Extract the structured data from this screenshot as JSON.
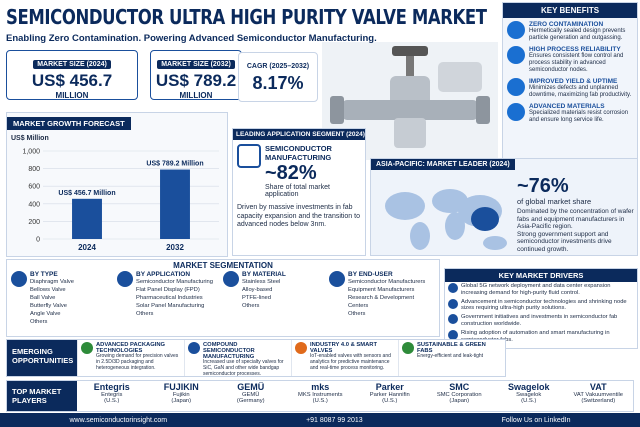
{
  "header": {
    "title": "SEMICONDUCTOR ULTRA HIGH PURITY VALVE MARKET",
    "subtitle": "Enabling Zero Contamination. Powering Advanced Semiconductor Manufacturing."
  },
  "stats": [
    {
      "label": "MARKET SIZE (2024)",
      "value": "US$ 456.7",
      "unit": "MILLION"
    },
    {
      "label": "MARKET SIZE (2032)",
      "value": "US$ 789.2",
      "unit": "MILLION"
    },
    {
      "label": "CAGR (2025–2032)",
      "value": "8.17%"
    }
  ],
  "forecast": {
    "type": "bar",
    "title": "MARKET GROWTH FORECAST",
    "y_label": "US$ Million",
    "categories": [
      "2024",
      "2032"
    ],
    "values": [
      456.7,
      789.2
    ],
    "value_labels": [
      "US$ 456.7 Million",
      "US$ 789.2 Million"
    ],
    "ylim": [
      0,
      1000
    ],
    "yticks": [
      0,
      200,
      400,
      600,
      800,
      {
        "value": 1000,
        "label": "1,000"
      }
    ],
    "color": "#1a4f9c",
    "grid": true
  },
  "key_benefits": {
    "title": "KEY BENEFITS",
    "items": [
      {
        "title": "ZERO CONTAMINATION",
        "text": "Hermetically sealed design prevents particle generation and outgassing."
      },
      {
        "title": "HIGH PROCESS RELIABILITY",
        "text": "Ensures consistent flow control and process stability in advanced semiconductor nodes."
      },
      {
        "title": "IMPROVED YIELD & UPTIME",
        "text": "Minimizes defects and unplanned downtime, maximizing fab productivity."
      },
      {
        "title": "ADVANCED MATERIALS",
        "text": "Specialized materials resist corrosion and ensure long service life."
      }
    ]
  },
  "application": {
    "title": "LEADING APPLICATION SEGMENT (2024)",
    "segment": "SEMICONDUCTOR MANUFACTURING",
    "share": "~82%",
    "share_text": "Share of total market application",
    "description": "Driven by massive investments in fab capacity expansion and the transition to advanced nodes below 3nm."
  },
  "region": {
    "title": "ASIA-PACIFIC: MARKET LEADER (2024)",
    "share": "~76%",
    "share_text": "of global market share",
    "description": "Dominated by the concentration of wafer fabs and equipment manufacturers in Asia-Pacific region.",
    "description2": "Strong government support and semiconductor investments drive continued growth."
  },
  "segmentation": {
    "title": "MARKET SEGMENTATION",
    "groups": [
      {
        "title": "BY TYPE",
        "items": [
          "Diaphragm Valve",
          "Bellows Valve",
          "Ball Valve",
          "Butterfly Valve",
          "Angle Valve",
          "Others"
        ]
      },
      {
        "title": "BY APPLICATION",
        "items": [
          "Semiconductor Manufacturing",
          "Flat Panel Display (FPD)",
          "Pharmaceutical Industries",
          "Solar Panel Manufacturing",
          "Others"
        ]
      },
      {
        "title": "BY MATERIAL",
        "items": [
          "Stainless Steel",
          "Alloy-based",
          "PTFE-lined",
          "Others"
        ]
      },
      {
        "title": "BY END-USER",
        "items": [
          "Semiconductor Manufacturers",
          "Equipment Manufacturers",
          "Research & Development Centers",
          "Others"
        ]
      }
    ]
  },
  "drivers": {
    "title": "KEY MARKET DRIVERS",
    "items": [
      "Global 5G network deployment and data center expansion increasing demand for high-purity fluid control.",
      "Advancement in semiconductor technologies and shrinking node sizes requiring ultra-high purity solutions.",
      "Government initiatives and investments in semiconductor fab construction worldwide.",
      "Rising adoption of automation and smart manufacturing in semiconductor fabs."
    ]
  },
  "opportunities": {
    "title": "EMERGING OPPORTUNITIES",
    "items": [
      {
        "title": "ADVANCED PACKAGING TECHNOLOGIES",
        "text": "Growing demand for precision valves in 2.5D/3D packaging and heterogeneous integration."
      },
      {
        "title": "COMPOUND SEMICONDUCTOR MANUFACTURING",
        "text": "Increased use of specialty valves for SiC, GaN and other wide bandgap semiconductor processes."
      },
      {
        "title": "INDUSTRY 4.0 & SMART VALVES",
        "text": "IoT-enabled valves with sensors and analytics for predictive maintenance and real-time process monitoring."
      },
      {
        "title": "SUSTAINABLE & GREEN FABS",
        "text": "Energy-efficient and leak-tight"
      }
    ]
  },
  "players": {
    "title": "TOP MARKET PLAYERS",
    "items": [
      {
        "logo": "Entegris",
        "name": "Entegris",
        "country": "(U.S.)"
      },
      {
        "logo": "FUJIKIN",
        "name": "Fujikin",
        "country": "(Japan)"
      },
      {
        "logo": "GEMÜ",
        "name": "GEMÜ",
        "country": "(Germany)"
      },
      {
        "logo": "mks",
        "name": "MKS Instruments",
        "country": "(U.S.)"
      },
      {
        "logo": "Parker",
        "name": "Parker Hannifin",
        "country": "(U.S.)"
      },
      {
        "logo": "SMC",
        "name": "SMC Corporation",
        "country": "(Japan)"
      },
      {
        "logo": "Swagelok",
        "name": "Swagelok",
        "country": "(U.S.)"
      },
      {
        "logo": "VAT",
        "name": "VAT Vakuumventile",
        "country": "(Switzerland)"
      }
    ]
  },
  "footer": {
    "website": "www.semiconductorinsight.com",
    "phone": "+91 8087 99 2013",
    "social": "Follow Us on LinkedIn"
  }
}
